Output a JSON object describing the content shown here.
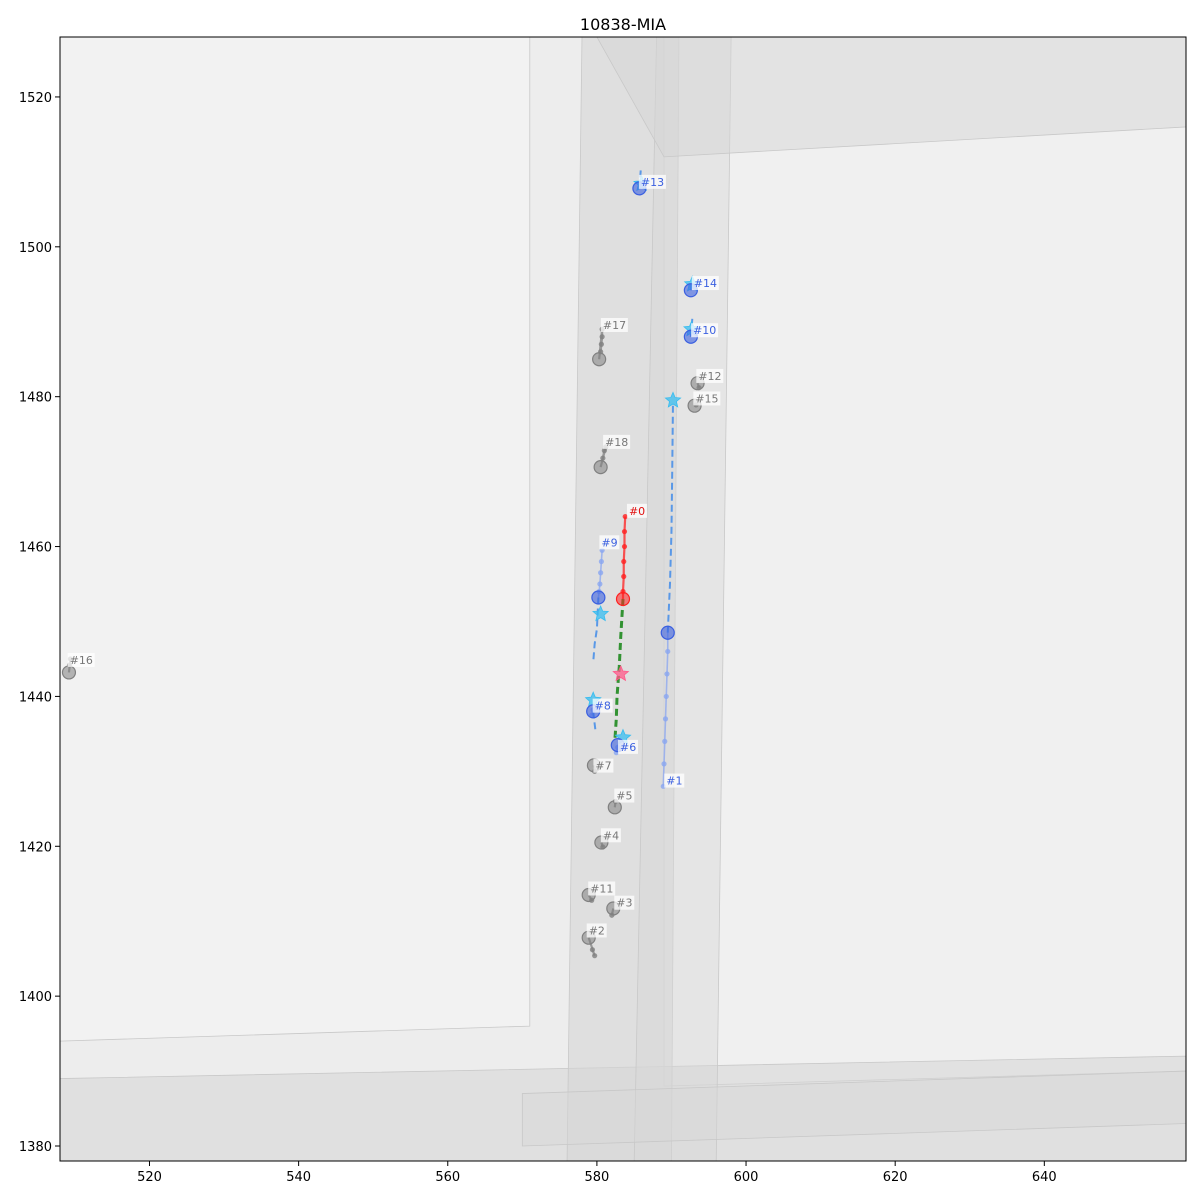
{
  "chart_data": {
    "type": "scatter",
    "title": "10838-MIA",
    "xlabel": "",
    "ylabel": "",
    "xlim": [
      508,
      659
    ],
    "ylim": [
      1378,
      1528
    ],
    "grid": false,
    "x_ticks": [
      520,
      540,
      560,
      580,
      600,
      620,
      640
    ],
    "y_ticks": [
      1380,
      1400,
      1420,
      1440,
      1460,
      1480,
      1500,
      1520
    ],
    "colors": {
      "background": "#ffffff",
      "map_area": "#ededed",
      "road": "#d6d6d6",
      "road_light": "#f5f5f5",
      "ego": "#ff2020",
      "ego_future": "#1f8a1f",
      "target": "#3a5fe0",
      "target_light": "#8aa6f0",
      "goal_star": "#38bdf0",
      "ego_goal_star": "#ff5a8a",
      "static": "#808080"
    },
    "agents": [
      {
        "id": "#0",
        "role": "ego",
        "current": [
          583.5,
          1453
        ],
        "history": [
          [
            583.8,
            1464
          ],
          [
            583.7,
            1462
          ],
          [
            583.7,
            1460
          ],
          [
            583.6,
            1458
          ],
          [
            583.6,
            1456
          ],
          [
            583.5,
            1454
          ]
        ],
        "future": [
          [
            583.5,
            1453
          ],
          [
            583.2,
            1448
          ],
          [
            583.0,
            1444
          ],
          [
            582.7,
            1440
          ],
          [
            582.6,
            1437
          ],
          [
            582.4,
            1434
          ]
        ],
        "goal": [
          583.2,
          1443
        ],
        "label_pos": [
          584.3,
          1464.5
        ]
      },
      {
        "id": "#1",
        "role": "target",
        "current": [
          589.5,
          1448.5
        ],
        "history": [
          [
            588.9,
            1428
          ],
          [
            589.0,
            1431
          ],
          [
            589.1,
            1434
          ],
          [
            589.2,
            1437
          ],
          [
            589.3,
            1440
          ],
          [
            589.4,
            1443
          ],
          [
            589.5,
            1446
          ]
        ],
        "future": [
          [
            589.5,
            1448.5
          ],
          [
            589.8,
            1455
          ],
          [
            590.0,
            1462
          ],
          [
            590.1,
            1470
          ],
          [
            590.2,
            1479
          ]
        ],
        "goal": [
          590.2,
          1479.5
        ],
        "label_pos": [
          589.3,
          1428.5
        ]
      },
      {
        "id": "#6",
        "role": "target",
        "current": [
          582.8,
          1433.5
        ],
        "history": [
          [
            582.6,
            1432.5
          ],
          [
            582.8,
            1433.2
          ]
        ],
        "future": [],
        "goal": [
          583.5,
          1434.5
        ],
        "label_pos": [
          583.1,
          1433
        ]
      },
      {
        "id": "#8",
        "role": "target",
        "current": [
          579.5,
          1438
        ],
        "history": [
          [
            579.3,
            1437.5
          ],
          [
            579.5,
            1438.2
          ]
        ],
        "future": [
          [
            579.8,
            1435.5
          ]
        ],
        "goal": [
          579.5,
          1439.5
        ],
        "label_pos": [
          579.7,
          1438.5
        ]
      },
      {
        "id": "#9",
        "role": "target",
        "current": [
          580.2,
          1453.2
        ],
        "history": [
          [
            580.7,
            1459.5
          ],
          [
            580.6,
            1458
          ],
          [
            580.5,
            1456.5
          ],
          [
            580.4,
            1455
          ],
          [
            580.3,
            1454
          ]
        ],
        "future": [
          [
            580.0,
            1449
          ],
          [
            579.7,
            1447
          ],
          [
            579.5,
            1444.5
          ]
        ],
        "goal": [
          580.5,
          1451
        ],
        "label_pos": [
          580.6,
          1460.3
        ]
      },
      {
        "id": "#10",
        "role": "target",
        "current": [
          592.6,
          1488
        ],
        "history": [
          [
            592.7,
            1488.8
          ]
        ],
        "future": [
          [
            592.8,
            1490.5
          ]
        ],
        "goal": [
          592.7,
          1489
        ],
        "label_pos": [
          592.9,
          1488.6
        ]
      },
      {
        "id": "#13",
        "role": "target",
        "current": [
          585.7,
          1507.8
        ],
        "history": [
          [
            585.8,
            1508.5
          ]
        ],
        "future": [
          [
            585.9,
            1510.5
          ]
        ],
        "goal": [
          586.0,
          1508.4
        ],
        "label_pos": [
          585.9,
          1508.4
        ]
      },
      {
        "id": "#14",
        "role": "target",
        "current": [
          592.6,
          1494.2
        ],
        "history": [
          [
            592.7,
            1494.8
          ]
        ],
        "future": [
          [
            592.8,
            1495.5
          ]
        ],
        "goal": [
          592.8,
          1495
        ],
        "label_pos": [
          593.0,
          1494.9
        ]
      },
      {
        "id": "#2",
        "role": "static",
        "current": [
          578.9,
          1407.8
        ],
        "history": [
          [
            579.4,
            1406.2
          ],
          [
            579.7,
            1405.4
          ]
        ],
        "label_pos": [
          578.9,
          1408.5
        ]
      },
      {
        "id": "#3",
        "role": "static",
        "current": [
          582.2,
          1411.7
        ],
        "history": [
          [
            582.0,
            1410.8
          ]
        ],
        "label_pos": [
          582.6,
          1412.2
        ]
      },
      {
        "id": "#4",
        "role": "static",
        "current": [
          580.6,
          1420.5
        ],
        "history": [
          [
            580.8,
            1419.9
          ]
        ],
        "label_pos": [
          580.8,
          1421.2
        ]
      },
      {
        "id": "#5",
        "role": "static",
        "current": [
          582.4,
          1425.2
        ],
        "history": [
          [
            582.5,
            1426
          ]
        ],
        "label_pos": [
          582.6,
          1426.5
        ]
      },
      {
        "id": "#7",
        "role": "static",
        "current": [
          579.6,
          1430.8
        ],
        "history": [
          [
            579.7,
            1430
          ]
        ],
        "label_pos": [
          579.8,
          1430.5
        ]
      },
      {
        "id": "#11",
        "role": "static",
        "current": [
          578.9,
          1413.5
        ],
        "history": [
          [
            579.3,
            1412.8
          ]
        ],
        "label_pos": [
          579.1,
          1414.1
        ]
      },
      {
        "id": "#12",
        "role": "static",
        "current": [
          593.5,
          1481.8
        ],
        "history": [
          [
            593.7,
            1481.2
          ]
        ],
        "label_pos": [
          593.6,
          1482.5
        ]
      },
      {
        "id": "#15",
        "role": "static",
        "current": [
          593.1,
          1478.8
        ],
        "history": [
          [
            593.3,
            1478.9
          ]
        ],
        "label_pos": [
          593.2,
          1479.5
        ]
      },
      {
        "id": "#16",
        "role": "static",
        "current": [
          509.2,
          1443.2
        ],
        "history": [
          [
            509.3,
            1444.2
          ],
          [
            509.4,
            1445
          ]
        ],
        "label_pos": [
          509.3,
          1444.6
        ]
      },
      {
        "id": "#17",
        "role": "static",
        "current": [
          580.3,
          1485
        ],
        "history": [
          [
            580.5,
            1486
          ],
          [
            580.6,
            1487
          ],
          [
            580.7,
            1488
          ],
          [
            580.7,
            1489
          ]
        ],
        "label_pos": [
          580.8,
          1489.3
        ]
      },
      {
        "id": "#18",
        "role": "static",
        "current": [
          580.5,
          1470.6
        ],
        "history": [
          [
            580.8,
            1471.8
          ],
          [
            581.0,
            1472.8
          ],
          [
            581.2,
            1473.3
          ]
        ],
        "label_pos": [
          581.1,
          1473.7
        ]
      }
    ]
  }
}
